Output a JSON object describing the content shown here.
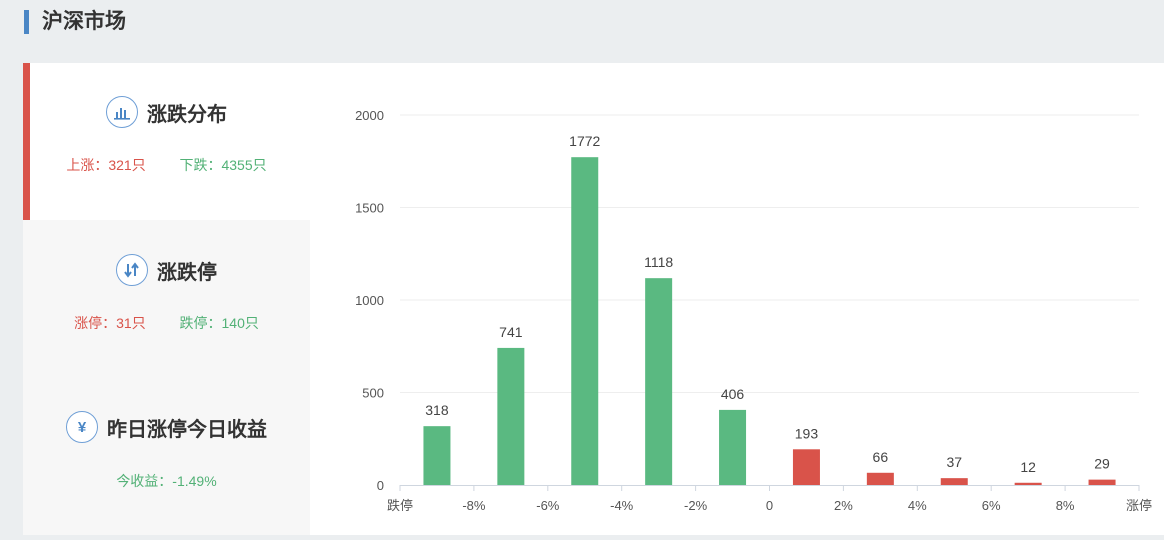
{
  "header": {
    "title": "沪深市场"
  },
  "stats": {
    "distribution": {
      "label": "涨跌分布",
      "up": "上涨：321只",
      "down": "下跌：4355只"
    },
    "limit": {
      "label": "涨跌停",
      "up": "涨停：31只",
      "down": "跌停：140只"
    },
    "yesterday": {
      "label": "昨日涨停今日收益",
      "icon_glyph": "¥",
      "value": "今收益：-1.49%"
    }
  },
  "colors": {
    "up": "#d9534a",
    "down": "#5ab981",
    "accent": "#4a86c5"
  },
  "chart_data": {
    "type": "bar",
    "x_ticks": [
      "跌停",
      "-8%",
      "-6%",
      "-4%",
      "-2%",
      "0",
      "2%",
      "4%",
      "6%",
      "8%",
      "涨停"
    ],
    "y_ticks": [
      0,
      500,
      1000,
      1500,
      2000
    ],
    "ylim": [
      0,
      2000
    ],
    "grid": true,
    "bars": [
      {
        "value": 318,
        "label": "318",
        "color": "#5ab981"
      },
      {
        "value": 741,
        "label": "741",
        "color": "#5ab981"
      },
      {
        "value": 1772,
        "label": "1772",
        "color": "#5ab981"
      },
      {
        "value": 1118,
        "label": "1118",
        "color": "#5ab981"
      },
      {
        "value": 406,
        "label": "406",
        "color": "#5ab981"
      },
      {
        "value": 193,
        "label": "193",
        "color": "#d9534a"
      },
      {
        "value": 66,
        "label": "66",
        "color": "#d9534a"
      },
      {
        "value": 37,
        "label": "37",
        "color": "#d9534a"
      },
      {
        "value": 12,
        "label": "12",
        "color": "#d9534a"
      },
      {
        "value": 29,
        "label": "29",
        "color": "#d9534a"
      }
    ]
  }
}
